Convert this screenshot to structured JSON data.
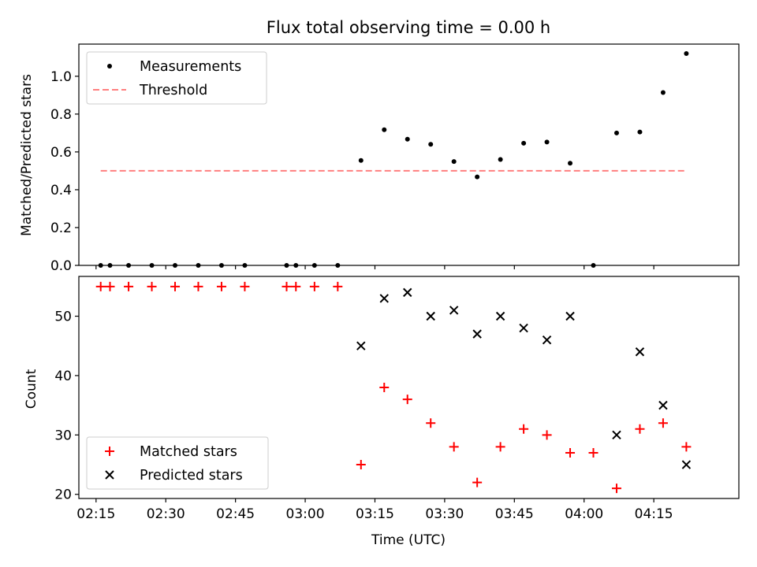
{
  "chart_data": [
    {
      "type": "scatter",
      "title": "Flux total observing time = 0.00 h",
      "xlabel": "",
      "ylabel": "Matched/Predicted stars",
      "ylim": [
        0,
        1.17
      ],
      "yticks": [
        "0.0",
        "0.2",
        "0.4",
        "0.6",
        "0.8",
        "1.0"
      ],
      "grid": false,
      "legend": "top-left",
      "series": [
        {
          "name": "Measurements",
          "marker": "dot",
          "color": "#000000",
          "x": [
            "02:16",
            "02:18",
            "02:22",
            "02:27",
            "02:32",
            "02:37",
            "02:42",
            "02:47",
            "02:56",
            "02:58",
            "03:02",
            "03:07",
            "03:12",
            "03:17",
            "03:22",
            "03:27",
            "03:32",
            "03:37",
            "03:42",
            "03:47",
            "03:52",
            "03:57",
            "04:02",
            "04:07",
            "04:12",
            "04:17",
            "04:22"
          ],
          "y": [
            0,
            0,
            0,
            0,
            0,
            0,
            0,
            0,
            0,
            0,
            0,
            0,
            0.555,
            0.717,
            0.667,
            0.64,
            0.549,
            0.468,
            0.56,
            0.646,
            0.652,
            0.54,
            0,
            0.7,
            0.705,
            0.914,
            1.12
          ]
        },
        {
          "name": "Threshold",
          "marker": "dashed-line",
          "color": "#ff7f7f",
          "x": [
            "02:16",
            "04:22"
          ],
          "y": [
            0.5,
            0.5
          ]
        }
      ]
    },
    {
      "type": "scatter",
      "xlabel": "Time (UTC)",
      "ylabel": "Count",
      "ylim": [
        19.3,
        56.7
      ],
      "yticks": [
        "20",
        "30",
        "40",
        "50"
      ],
      "xticks": [
        "02:15",
        "02:30",
        "02:45",
        "03:00",
        "03:15",
        "03:30",
        "03:45",
        "04:00",
        "04:15"
      ],
      "grid": false,
      "legend": "bottom-left",
      "series": [
        {
          "name": "Matched stars",
          "marker": "plus",
          "color": "#ff0000",
          "x": [
            "02:16",
            "02:18",
            "02:22",
            "02:27",
            "02:32",
            "02:37",
            "02:42",
            "02:47",
            "02:56",
            "02:58",
            "03:02",
            "03:07",
            "03:12",
            "03:17",
            "03:22",
            "03:27",
            "03:32",
            "03:37",
            "03:42",
            "03:47",
            "03:52",
            "03:57",
            "04:02",
            "04:07",
            "04:12",
            "04:17",
            "04:22"
          ],
          "y": [
            55,
            55,
            55,
            55,
            55,
            55,
            55,
            55,
            55,
            55,
            55,
            55,
            25,
            38,
            36,
            32,
            28,
            22,
            28,
            31,
            30,
            27,
            27,
            21,
            31,
            32,
            28
          ]
        },
        {
          "name": "Predicted stars",
          "marker": "x",
          "color": "#000000",
          "x": [
            "03:12",
            "03:17",
            "03:22",
            "03:27",
            "03:32",
            "03:37",
            "03:42",
            "03:47",
            "03:52",
            "03:57",
            "04:07",
            "04:12",
            "04:17",
            "04:22"
          ],
          "y": [
            45,
            53,
            54,
            50,
            51,
            47,
            50,
            48,
            46,
            50,
            30,
            44,
            35,
            25
          ]
        }
      ]
    }
  ]
}
